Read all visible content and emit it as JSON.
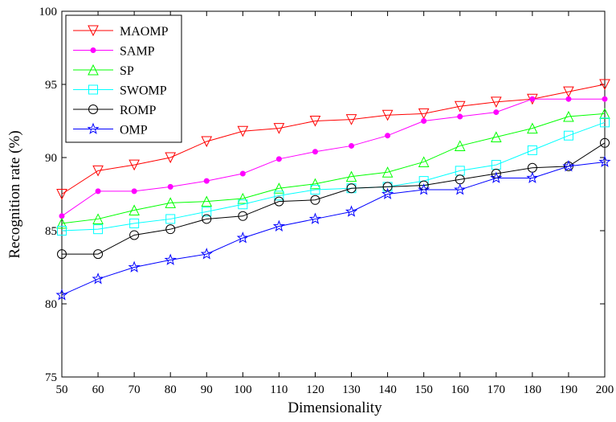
{
  "chart_data": {
    "type": "line",
    "xlabel": "Dimensionality",
    "ylabel": "Recognition rate (%)",
    "xlim": [
      50,
      200
    ],
    "ylim": [
      75,
      100
    ],
    "xticks": [
      50,
      60,
      70,
      80,
      90,
      100,
      110,
      120,
      130,
      140,
      150,
      160,
      170,
      180,
      190,
      200
    ],
    "yticks": [
      75,
      80,
      85,
      90,
      95,
      100
    ],
    "legend_position": "top-left",
    "grid": false,
    "x": [
      50,
      60,
      70,
      80,
      90,
      100,
      110,
      120,
      130,
      140,
      150,
      160,
      170,
      180,
      190,
      200
    ],
    "series": [
      {
        "name": "MAOMP",
        "color": "#ff0000",
        "marker": "triangle-down",
        "values": [
          87.5,
          89.1,
          89.5,
          90.0,
          91.1,
          91.8,
          92.0,
          92.5,
          92.6,
          92.9,
          93.0,
          93.5,
          93.8,
          94.0,
          94.5,
          95.0
        ]
      },
      {
        "name": "SAMP",
        "color": "#ff00ff",
        "marker": "dot",
        "values": [
          86.0,
          87.7,
          87.7,
          88.0,
          88.4,
          88.9,
          89.9,
          90.4,
          90.8,
          91.5,
          92.5,
          92.8,
          93.1,
          94.0,
          94.0,
          94.0
        ]
      },
      {
        "name": "SP",
        "color": "#00ff00",
        "marker": "triangle-up",
        "values": [
          85.5,
          85.8,
          86.4,
          86.9,
          87.0,
          87.2,
          87.9,
          88.2,
          88.7,
          89.0,
          89.7,
          90.8,
          91.4,
          92.0,
          92.8,
          93.0
        ]
      },
      {
        "name": "SWOMP",
        "color": "#00ffff",
        "marker": "square",
        "values": [
          85.0,
          85.1,
          85.5,
          85.8,
          86.3,
          86.8,
          87.4,
          87.8,
          87.9,
          88.0,
          88.4,
          89.1,
          89.5,
          90.5,
          91.5,
          92.4
        ]
      },
      {
        "name": "ROMP",
        "color": "#000000",
        "marker": "circle",
        "values": [
          83.4,
          83.4,
          84.7,
          85.1,
          85.8,
          86.0,
          87.0,
          87.1,
          87.9,
          88.0,
          88.1,
          88.5,
          88.9,
          89.3,
          89.4,
          91.0
        ]
      },
      {
        "name": "OMP",
        "color": "#0000ff",
        "marker": "star",
        "values": [
          80.6,
          81.7,
          82.5,
          83.0,
          83.4,
          84.5,
          85.3,
          85.8,
          86.3,
          87.5,
          87.8,
          87.8,
          88.6,
          88.6,
          89.4,
          89.7
        ]
      }
    ]
  }
}
